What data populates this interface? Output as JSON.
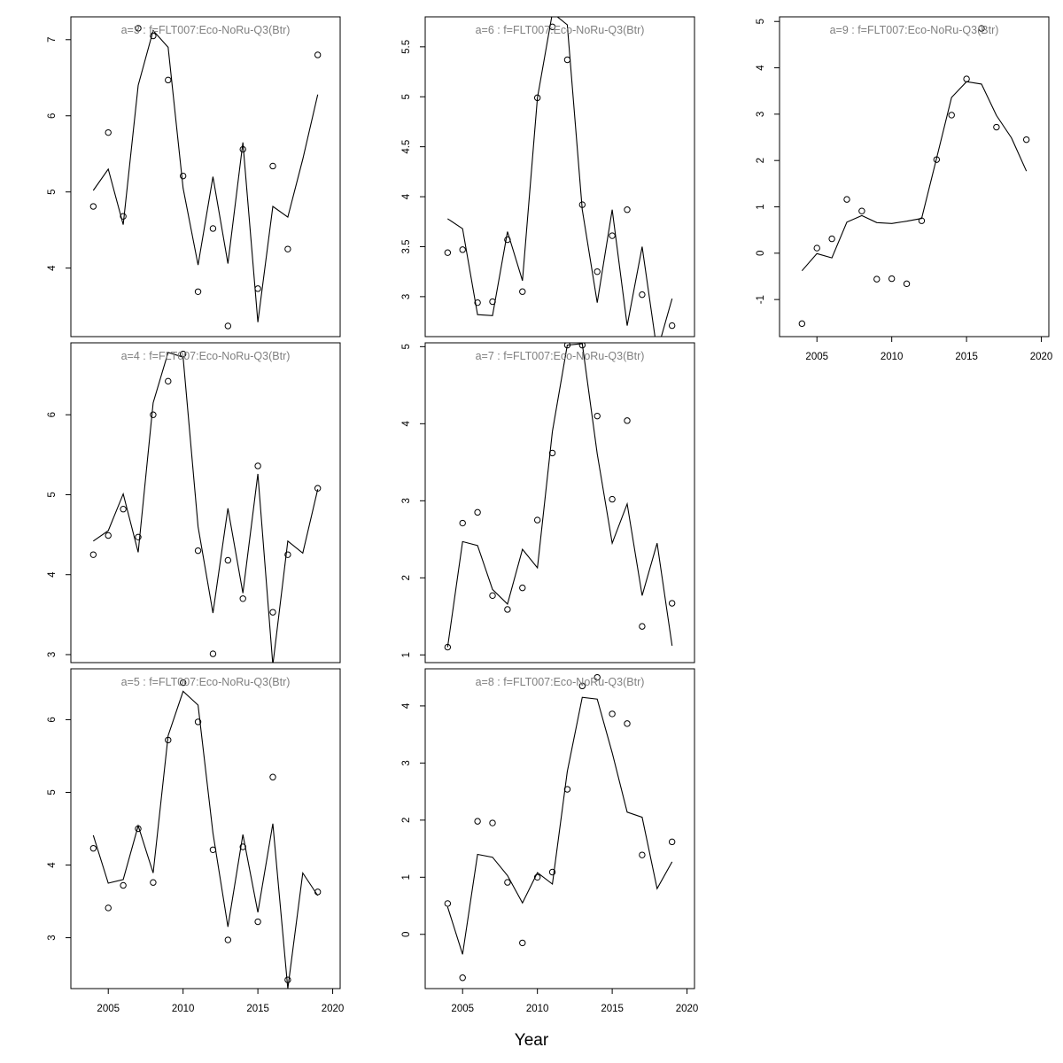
{
  "xlabel": "Year",
  "chart_data": [
    {
      "type": "line+scatter",
      "title": "a=3  :  f=FLT007:Eco-NoRu-Q3(Btr)",
      "ylim": [
        3.1,
        7.3
      ],
      "yticks": [
        4,
        5,
        6,
        7
      ],
      "show_xaxis": false,
      "fitted": {
        "x": [
          2004,
          2005,
          2006,
          2007,
          2008,
          2009,
          2010,
          2011,
          2012,
          2013,
          2014,
          2015,
          2016,
          2017,
          2018,
          2019
        ],
        "y": [
          5.02,
          5.3,
          4.57,
          6.4,
          7.12,
          6.9,
          5.05,
          4.04,
          5.2,
          4.06,
          5.65,
          3.29,
          4.81,
          4.67,
          5.43,
          6.28
        ]
      },
      "observed": {
        "x": [
          2004,
          2005,
          2006,
          2007,
          2008,
          2009,
          2010,
          2011,
          2012,
          2013,
          2014,
          2015,
          2016,
          2017,
          2019
        ],
        "y": [
          4.81,
          5.78,
          4.68,
          7.15,
          7.05,
          6.47,
          5.21,
          3.69,
          4.52,
          3.24,
          5.56,
          3.73,
          5.34,
          4.25,
          6.8
        ]
      }
    },
    {
      "type": "line+scatter",
      "title": "a=4  :  f=FLT007:Eco-NoRu-Q3(Btr)",
      "ylim": [
        2.9,
        6.9
      ],
      "yticks": [
        3,
        4,
        5,
        6
      ],
      "show_xaxis": false,
      "fitted": {
        "x": [
          2004,
          2005,
          2006,
          2007,
          2008,
          2009,
          2010,
          2011,
          2012,
          2013,
          2014,
          2015,
          2016,
          2017,
          2018,
          2019
        ],
        "y": [
          4.42,
          4.55,
          5.01,
          4.28,
          6.15,
          6.78,
          6.72,
          4.6,
          3.52,
          4.83,
          3.77,
          5.26,
          2.87,
          4.42,
          4.27,
          5.07
        ]
      },
      "observed": {
        "x": [
          2004,
          2005,
          2006,
          2007,
          2008,
          2009,
          2010,
          2011,
          2012,
          2013,
          2014,
          2015,
          2016,
          2017,
          2019
        ],
        "y": [
          4.25,
          4.49,
          4.82,
          4.47,
          6.0,
          6.42,
          6.76,
          4.3,
          3.01,
          4.18,
          3.7,
          5.36,
          3.53,
          4.25,
          5.08
        ]
      }
    },
    {
      "type": "line+scatter",
      "title": "a=5  :  f=FLT007:Eco-NoRu-Q3(Btr)",
      "ylim": [
        2.3,
        6.7
      ],
      "yticks": [
        3,
        4,
        5,
        6
      ],
      "show_xaxis": true,
      "fitted": {
        "x": [
          2004,
          2005,
          2006,
          2007,
          2008,
          2009,
          2010,
          2011,
          2012,
          2013,
          2014,
          2015,
          2016,
          2017,
          2018,
          2019
        ],
        "y": [
          4.41,
          3.75,
          3.8,
          4.54,
          3.89,
          5.78,
          6.39,
          6.2,
          4.44,
          3.15,
          4.42,
          3.35,
          4.57,
          2.3,
          3.89,
          3.58
        ]
      },
      "observed": {
        "x": [
          2004,
          2005,
          2006,
          2007,
          2008,
          2009,
          2010,
          2011,
          2012,
          2013,
          2014,
          2015,
          2016,
          2017,
          2019
        ],
        "y": [
          4.23,
          3.41,
          3.72,
          4.5,
          3.76,
          5.72,
          6.51,
          5.97,
          4.21,
          2.97,
          4.25,
          3.22,
          5.21,
          2.42,
          3.63
        ]
      }
    },
    {
      "type": "line+scatter",
      "title": "a=6  :  f=FLT007:Eco-NoRu-Q3(Btr)",
      "ylim": [
        2.6,
        5.8
      ],
      "yticks": [
        3.0,
        3.5,
        4.0,
        4.5,
        5.0,
        5.5
      ],
      "show_xaxis": false,
      "fitted": {
        "x": [
          2004,
          2005,
          2006,
          2007,
          2008,
          2009,
          2010,
          2011,
          2012,
          2013,
          2014,
          2015,
          2016,
          2017,
          2018,
          2019
        ],
        "y": [
          3.78,
          3.68,
          2.82,
          2.81,
          3.65,
          3.16,
          4.99,
          5.84,
          5.72,
          3.87,
          2.94,
          3.87,
          2.71,
          3.5,
          2.45,
          2.98
        ]
      },
      "observed": {
        "x": [
          2004,
          2005,
          2006,
          2007,
          2008,
          2009,
          2010,
          2011,
          2012,
          2013,
          2014,
          2015,
          2016,
          2017,
          2019
        ],
        "y": [
          3.44,
          3.47,
          2.94,
          2.95,
          3.57,
          3.05,
          4.99,
          5.7,
          5.37,
          3.92,
          3.25,
          3.61,
          3.87,
          3.02,
          2.71
        ]
      }
    },
    {
      "type": "line+scatter",
      "title": "a=7  :  f=FLT007:Eco-NoRu-Q3(Btr)",
      "ylim": [
        0.9,
        5.05
      ],
      "yticks": [
        1,
        2,
        3,
        4,
        5
      ],
      "show_xaxis": false,
      "fitted": {
        "x": [
          2004,
          2005,
          2006,
          2007,
          2008,
          2009,
          2010,
          2011,
          2012,
          2013,
          2014,
          2015,
          2016,
          2017,
          2018,
          2019
        ],
        "y": [
          1.1,
          2.47,
          2.42,
          1.85,
          1.66,
          2.37,
          2.13,
          3.9,
          5.02,
          5.04,
          3.61,
          2.45,
          2.96,
          1.77,
          2.45,
          1.12
        ]
      },
      "observed": {
        "x": [
          2004,
          2005,
          2006,
          2007,
          2008,
          2009,
          2010,
          2011,
          2012,
          2013,
          2014,
          2015,
          2016,
          2017,
          2019
        ],
        "y": [
          1.1,
          2.71,
          2.85,
          1.77,
          1.59,
          1.87,
          2.75,
          3.62,
          5.02,
          5.02,
          4.1,
          3.02,
          4.04,
          1.37,
          1.67
        ]
      }
    },
    {
      "type": "line+scatter",
      "title": "a=8  :  f=FLT007:Eco-NoRu-Q3(Btr)",
      "ylim": [
        -0.95,
        4.65
      ],
      "yticks": [
        0,
        1,
        2,
        3,
        4
      ],
      "show_xaxis": true,
      "fitted": {
        "x": [
          2004,
          2005,
          2006,
          2007,
          2008,
          2009,
          2010,
          2011,
          2012,
          2013,
          2014,
          2015,
          2016,
          2017,
          2018,
          2019
        ],
        "y": [
          0.48,
          -0.35,
          1.4,
          1.35,
          1.03,
          0.55,
          1.08,
          0.88,
          2.85,
          4.15,
          4.12,
          3.18,
          2.14,
          2.05,
          0.8,
          1.27
        ]
      },
      "observed": {
        "x": [
          2004,
          2005,
          2006,
          2007,
          2008,
          2009,
          2010,
          2011,
          2012,
          2013,
          2014,
          2015,
          2016,
          2017,
          2019
        ],
        "y": [
          0.54,
          -0.76,
          1.98,
          1.95,
          0.91,
          -0.15,
          1.0,
          1.09,
          2.54,
          4.35,
          4.5,
          3.86,
          3.69,
          1.39,
          1.62
        ]
      }
    },
    {
      "type": "line+scatter",
      "title": "a=9  :  f=FLT007:Eco-NoRu-Q3(Btr)",
      "ylim": [
        -1.8,
        5.1
      ],
      "yticks": [
        -1,
        0,
        1,
        2,
        3,
        4,
        5
      ],
      "show_xaxis": true,
      "fitted": {
        "x": [
          2004,
          2005,
          2006,
          2007,
          2008,
          2009,
          2010,
          2011,
          2012,
          2013,
          2014,
          2015,
          2016,
          2017,
          2018,
          2019
        ],
        "y": [
          -0.38,
          -0.01,
          -0.1,
          0.67,
          0.81,
          0.66,
          0.64,
          0.69,
          0.75,
          2.05,
          3.36,
          3.7,
          3.65,
          2.97,
          2.49,
          1.77
        ]
      },
      "observed": {
        "x": [
          2004,
          2005,
          2006,
          2007,
          2008,
          2009,
          2010,
          2011,
          2012,
          2013,
          2014,
          2015,
          2016,
          2017,
          2019
        ],
        "y": [
          -1.52,
          0.11,
          0.31,
          1.16,
          0.91,
          -0.56,
          -0.55,
          -0.66,
          0.7,
          2.02,
          2.98,
          3.76,
          4.85,
          2.72,
          2.45
        ]
      }
    }
  ],
  "xaxis": {
    "xlim": [
      2002.5,
      2020.5
    ],
    "ticks": [
      2005,
      2010,
      2015,
      2020
    ]
  }
}
